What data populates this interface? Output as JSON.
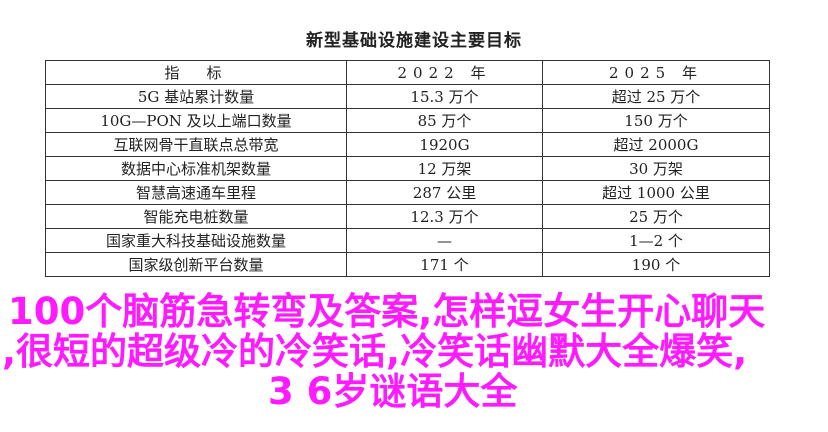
{
  "document": {
    "title": "新型基础设施建设主要目标",
    "table": {
      "headers": [
        "指　标",
        "2022 年",
        "2025 年"
      ],
      "rows": [
        [
          "5G 基站累计数量",
          "15.3 万个",
          "超过 25 万个"
        ],
        [
          "10G—PON 及以上端口数量",
          "85 万个",
          "150 万个"
        ],
        [
          "互联网骨干直联点总带宽",
          "1920G",
          "超过 2000G"
        ],
        [
          "数据中心标准机架数量",
          "12 万架",
          "30 万架"
        ],
        [
          "智慧高速通车里程",
          "287 公里",
          "超过 1000 公里"
        ],
        [
          "智能充电桩数量",
          "12.3 万个",
          "25 万个"
        ],
        [
          "国家重大科技基础设施数量",
          "—",
          "1—2 个"
        ],
        [
          "国家级创新平台数量",
          "171 个",
          "190 个"
        ]
      ]
    }
  },
  "overlay": {
    "line1": "100个脑筋急转弯及答案,怎样逗女生开心聊天",
    "line2": ",很短的超级冷的冷笑话,冷笑话幽默大全爆笑,",
    "line3": "3 6岁谜语大全",
    "color": "#ff1aff"
  }
}
